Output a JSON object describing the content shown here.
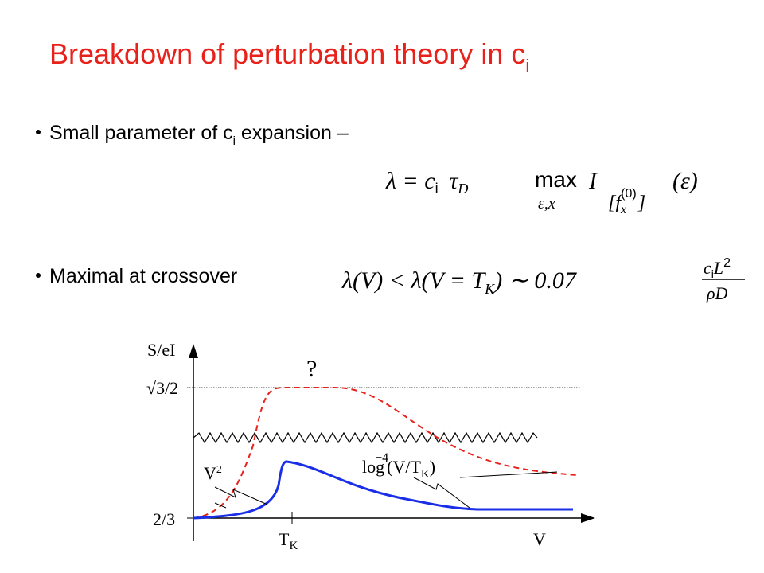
{
  "title": {
    "text": "Breakdown of perturbation theory in c",
    "sub": "i"
  },
  "bullets": [
    {
      "text": "Small parameter of c",
      "sub": "i",
      "rest": " expansion –"
    },
    {
      "text": "Maximal at crossover"
    }
  ],
  "formula_1": {
    "lhs": "λ = c",
    "c_sub": "i",
    "tau": "τ",
    "tau_sub": "D",
    "max": "max",
    "max_under": "ε,x",
    "i": "I",
    "i_sub": "[f",
    "f_sub": "x",
    "f_sup": "(0)",
    "bracket": "]",
    "arg": "(ε)"
  },
  "formula_2": {
    "lhs": "λ(V) < λ(V = T",
    "t_sub": "K",
    "rhs": ") ∼ 0.07",
    "num": "c",
    "num_sub": "i",
    "num_l": "L",
    "num_sup": "2",
    "den": "ρD"
  },
  "diagram": {
    "y_label": "S/eI",
    "y_top": "√3/2",
    "y_bottom": "2/3",
    "x_label": "V",
    "x_tick": "T",
    "x_tick_sub": "K",
    "question": "?",
    "v2": "V",
    "v2_sup": "2",
    "log": "log",
    "log_sup": "−4",
    "log_arg": "(V/T",
    "log_sub": "K",
    "log_close": ")"
  }
}
